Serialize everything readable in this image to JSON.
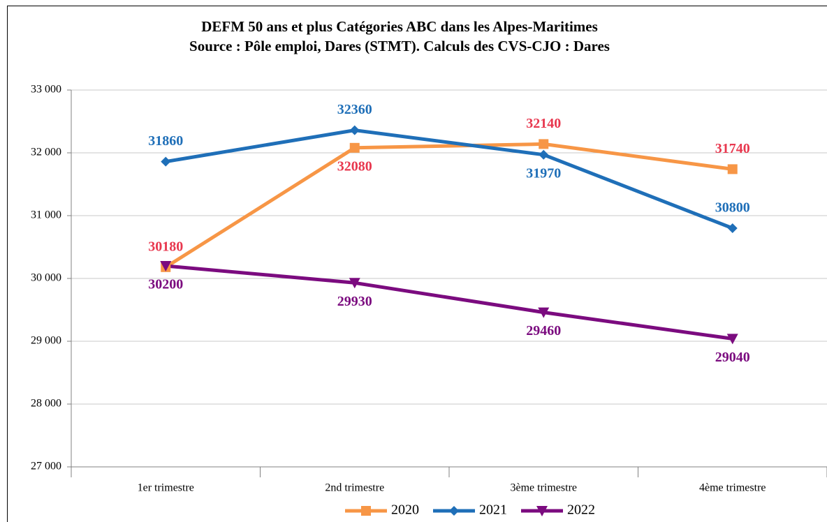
{
  "chart_data": {
    "type": "line",
    "title": "DEFM 50 ans et plus  Catégories ABC dans les Alpes-Maritimes",
    "subtitle": "Source : Pôle emploi, Dares (STMT). Calculs des CVS-CJO : Dares",
    "categories": [
      "1er trimestre",
      "2nd  trimestre",
      "3ème trimestre",
      "4ème trimestre"
    ],
    "series": [
      {
        "name": "2020",
        "color": "#f79646",
        "label_color": "#e8384f",
        "marker": "square",
        "values": [
          30180,
          32080,
          32140,
          31740
        ]
      },
      {
        "name": "2021",
        "color": "#1f6fb8",
        "label_color": "#1f6fb8",
        "marker": "diamond",
        "values": [
          31860,
          32360,
          31970,
          30800
        ]
      },
      {
        "name": "2022",
        "color": "#7b0b7f",
        "label_color": "#7b0b7f",
        "marker": "triangle-down",
        "values": [
          30200,
          29930,
          29460,
          29040
        ]
      }
    ],
    "ylim": [
      27000,
      33000
    ],
    "yticks": [
      {
        "value": 27000,
        "label": "27 000"
      },
      {
        "value": 28000,
        "label": "28 000"
      },
      {
        "value": 29000,
        "label": "29 000"
      },
      {
        "value": 30000,
        "label": "30 000"
      },
      {
        "value": 31000,
        "label": "31 000"
      },
      {
        "value": 32000,
        "label": "32 000"
      },
      {
        "value": 33000,
        "label": "33 000"
      }
    ],
    "grid": true,
    "legend": "bottom"
  }
}
